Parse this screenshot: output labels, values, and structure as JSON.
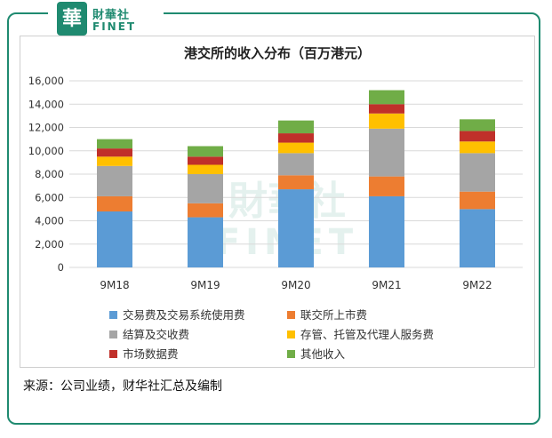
{
  "logo": {
    "mark": "華",
    "cn": "財華社",
    "en": "FINET"
  },
  "watermark": {
    "cn": "財華社",
    "en": "FINET"
  },
  "chart_data": {
    "type": "bar",
    "stacked": true,
    "title": "港交所的收入分布（百万港元）",
    "categories": [
      "9M18",
      "9M19",
      "9M20",
      "9M21",
      "9M22"
    ],
    "ylim": [
      0,
      16000
    ],
    "yticks": [
      0,
      2000,
      4000,
      6000,
      8000,
      10000,
      12000,
      14000,
      16000
    ],
    "ytick_labels": [
      "0",
      "2,000",
      "4,000",
      "6,000",
      "8,000",
      "10,000",
      "12,000",
      "14,000",
      "16,000"
    ],
    "grid": true,
    "legend_position": "bottom",
    "series": [
      {
        "name": "交易费及交易系统使用费",
        "color": "#5b9bd5",
        "values": [
          4800,
          4300,
          6700,
          6100,
          5000
        ]
      },
      {
        "name": "联交所上市费",
        "color": "#ed7d31",
        "values": [
          1300,
          1200,
          1200,
          1700,
          1500
        ]
      },
      {
        "name": "结算及交收费",
        "color": "#a5a5a5",
        "values": [
          2600,
          2500,
          1900,
          4100,
          3300
        ]
      },
      {
        "name": "存管、托管及代理人服务费",
        "color": "#ffc000",
        "values": [
          800,
          800,
          900,
          1300,
          1000
        ]
      },
      {
        "name": "市场数据费",
        "color": "#c0302a",
        "values": [
          700,
          700,
          800,
          800,
          900
        ]
      },
      {
        "name": "其他收入",
        "color": "#70ad47",
        "values": [
          800,
          900,
          1100,
          1200,
          1000
        ]
      }
    ]
  },
  "source": "来源：公司业绩，财华社汇总及编制"
}
